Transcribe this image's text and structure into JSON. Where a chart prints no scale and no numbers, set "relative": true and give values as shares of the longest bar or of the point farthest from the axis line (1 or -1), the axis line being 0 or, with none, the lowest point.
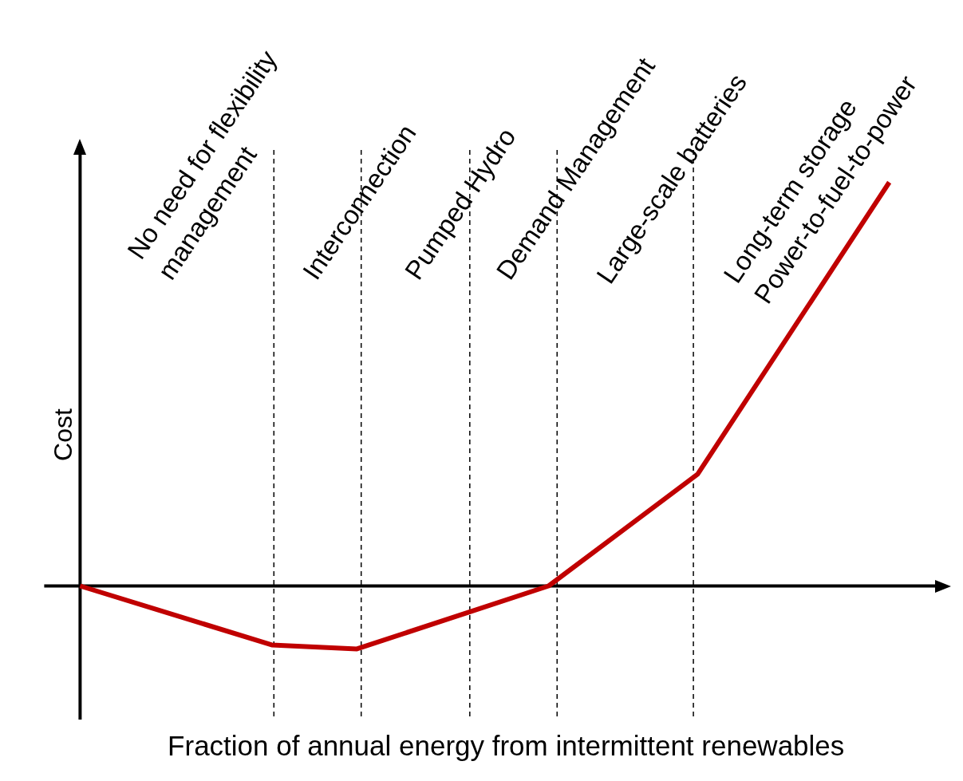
{
  "chart_data": {
    "type": "line",
    "xlabel": "Fraction of annual energy from intermittent renewables",
    "ylabel": "Cost",
    "relative": true,
    "categories": [
      null,
      null,
      null,
      null,
      null,
      null,
      null,
      null,
      null,
      null,
      null,
      null,
      null,
      null,
      null,
      null,
      null,
      null,
      null,
      null,
      null,
      null,
      null,
      null,
      null,
      null,
      null,
      null,
      null,
      null,
      null,
      null,
      null,
      null,
      null,
      null,
      null,
      null,
      null,
      null,
      null
    ],
    "series": [
      {
        "color": "#c00000",
        "values": [
          0,
          null,
          null,
          null,
          null,
          null,
          null,
          null,
          null,
          -0.146,
          null,
          null,
          null,
          -0.156,
          null,
          null,
          null,
          null,
          null,
          null,
          null,
          null,
          0,
          null,
          null,
          null,
          null,
          null,
          null,
          0.277,
          null,
          null,
          null,
          null,
          null,
          null,
          null,
          null,
          1,
          null,
          null
        ]
      }
    ],
    "tick_labels": false,
    "grid": false,
    "legend": false,
    "marker": "none",
    "line_style": "solid",
    "annotations": [
      "No need for flexibility\nmanagement",
      "Interconnection",
      "Pumped Hydro",
      "Demand Management",
      "Large-scale batteries",
      "Long-term storage\nPower-to-fuel-to-power"
    ]
  }
}
